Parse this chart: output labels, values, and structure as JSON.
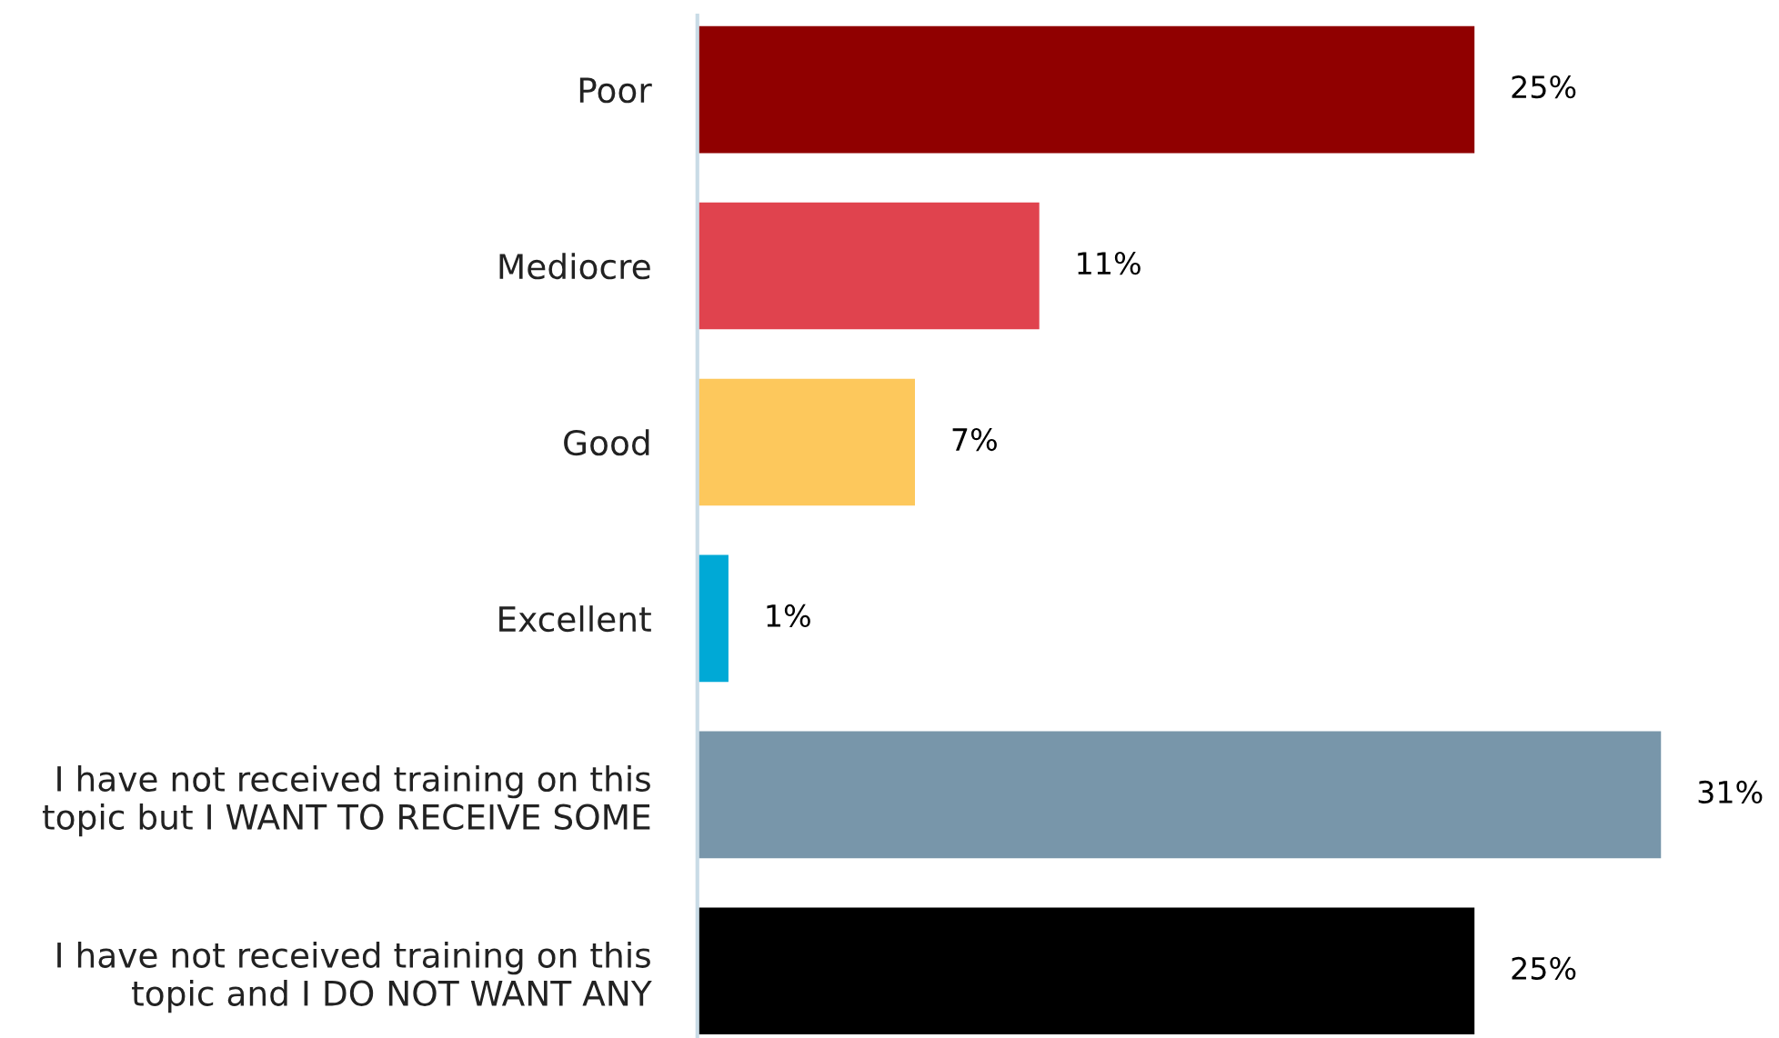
{
  "chart_data": {
    "type": "bar",
    "orientation": "horizontal",
    "categories": [
      "Poor",
      "Mediocre",
      "Good",
      "Excellent",
      "I have not received training on this topic but I WANT TO RECEIVE SOME",
      "I have not received training on this topic and I DO NOT WANT ANY"
    ],
    "values": [
      25,
      11,
      7,
      1,
      31,
      25
    ],
    "value_labels": [
      "25%",
      "11%",
      "7%",
      "1%",
      "31%",
      "25%"
    ],
    "colors": [
      "#900000",
      "#e0434e",
      "#fdc85c",
      "#00a9d6",
      "#7896aa",
      "#000000"
    ],
    "tick_labels": "y"
  }
}
